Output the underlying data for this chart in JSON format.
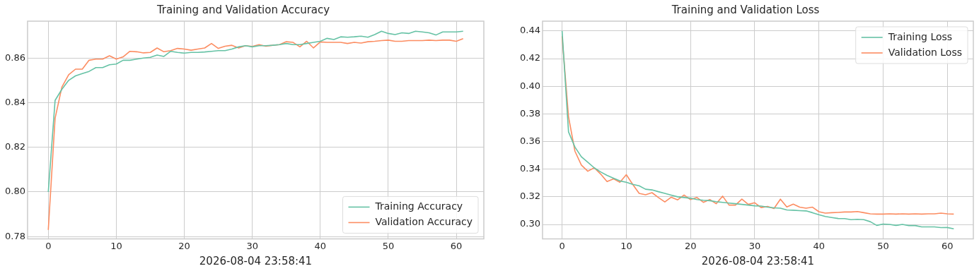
{
  "chart_data": [
    {
      "type": "line",
      "title": "Training and Validation Accuracy",
      "xlabel": "2026-08-04 23:58:41",
      "x": [
        0,
        1,
        2,
        3,
        4,
        5,
        6,
        7,
        8,
        9,
        10,
        11,
        12,
        13,
        14,
        15,
        16,
        17,
        18,
        19,
        20,
        21,
        22,
        23,
        24,
        25,
        26,
        27,
        28,
        29,
        30,
        31,
        32,
        33,
        34,
        35,
        36,
        37,
        38,
        39,
        40,
        41,
        42,
        43,
        44,
        45,
        46,
        47,
        48,
        49,
        50,
        51,
        52,
        53,
        54,
        55,
        56,
        57,
        58,
        59,
        60,
        61
      ],
      "series": [
        {
          "name": "Training Accuracy",
          "color": "#66c2a5",
          "values": [
            0.8,
            0.841,
            0.846,
            0.85,
            0.852,
            0.853,
            0.854,
            0.8557,
            0.8557,
            0.857,
            0.8573,
            0.859,
            0.859,
            0.8595,
            0.86,
            0.8603,
            0.8613,
            0.8607,
            0.863,
            0.8625,
            0.8622,
            0.8625,
            0.8625,
            0.8627,
            0.863,
            0.8633,
            0.8633,
            0.864,
            0.865,
            0.8655,
            0.865,
            0.8655,
            0.8655,
            0.8657,
            0.866,
            0.8665,
            0.866,
            0.866,
            0.8665,
            0.867,
            0.8675,
            0.8688,
            0.8683,
            0.8695,
            0.8693,
            0.8695,
            0.8698,
            0.8693,
            0.8705,
            0.872,
            0.871,
            0.8705,
            0.8713,
            0.871,
            0.872,
            0.8717,
            0.8713,
            0.8703,
            0.8717,
            0.8717,
            0.8717,
            0.872
          ]
        },
        {
          "name": "Validation Accuracy",
          "color": "#fc8d62",
          "values": [
            0.783,
            0.833,
            0.847,
            0.8525,
            0.855,
            0.855,
            0.859,
            0.8595,
            0.8595,
            0.861,
            0.8595,
            0.8605,
            0.863,
            0.8628,
            0.8623,
            0.8625,
            0.8645,
            0.8628,
            0.8633,
            0.8643,
            0.864,
            0.8635,
            0.864,
            0.8645,
            0.8665,
            0.8643,
            0.8653,
            0.8657,
            0.8645,
            0.8655,
            0.8652,
            0.866,
            0.8653,
            0.8657,
            0.866,
            0.8673,
            0.867,
            0.865,
            0.8675,
            0.8645,
            0.8672,
            0.867,
            0.867,
            0.867,
            0.8665,
            0.867,
            0.8667,
            0.8673,
            0.8675,
            0.8678,
            0.868,
            0.8675,
            0.8675,
            0.8678,
            0.8678,
            0.8678,
            0.868,
            0.8678,
            0.868,
            0.868,
            0.8675,
            0.8687
          ]
        }
      ],
      "xlim": [
        -3.05,
        64.05
      ],
      "xticks": [
        0,
        10,
        20,
        30,
        40,
        50,
        60
      ],
      "ylim": [
        0.779,
        0.8765
      ],
      "yticks": [
        {
          "value": 0.78,
          "label": "0.78"
        },
        {
          "value": 0.8,
          "label": "0.80"
        },
        {
          "value": 0.82,
          "label": "0.82"
        },
        {
          "value": 0.84,
          "label": "0.84"
        },
        {
          "value": 0.86,
          "label": "0.86"
        }
      ],
      "grid": true,
      "legend": "bottom right",
      "marker": "none",
      "line_style": "solid"
    },
    {
      "type": "line",
      "title": "Training and Validation Loss",
      "xlabel": "2026-08-04 23:58:41",
      "x": [
        0,
        1,
        2,
        3,
        4,
        5,
        6,
        7,
        8,
        9,
        10,
        11,
        12,
        13,
        14,
        15,
        16,
        17,
        18,
        19,
        20,
        21,
        22,
        23,
        24,
        25,
        26,
        27,
        28,
        29,
        30,
        31,
        32,
        33,
        34,
        35,
        36,
        37,
        38,
        39,
        40,
        41,
        42,
        43,
        44,
        45,
        46,
        47,
        48,
        49,
        50,
        51,
        52,
        53,
        54,
        55,
        56,
        57,
        58,
        59,
        60,
        61
      ],
      "series": [
        {
          "name": "Training Loss",
          "color": "#66c2a5",
          "values": [
            0.44,
            0.367,
            0.356,
            0.349,
            0.345,
            0.341,
            0.338,
            0.3355,
            0.3335,
            0.3315,
            0.3305,
            0.329,
            0.328,
            0.3255,
            0.325,
            0.3237,
            0.3225,
            0.3212,
            0.32,
            0.3195,
            0.319,
            0.318,
            0.3175,
            0.3172,
            0.3165,
            0.316,
            0.3155,
            0.315,
            0.3145,
            0.314,
            0.3135,
            0.3133,
            0.3125,
            0.312,
            0.3118,
            0.3105,
            0.3103,
            0.31,
            0.3098,
            0.3085,
            0.307,
            0.3058,
            0.305,
            0.3043,
            0.3042,
            0.3035,
            0.3037,
            0.3035,
            0.302,
            0.2993,
            0.3003,
            0.3,
            0.2993,
            0.3,
            0.2992,
            0.2992,
            0.2982,
            0.2982,
            0.2982,
            0.2977,
            0.2978,
            0.2968
          ]
        },
        {
          "name": "Validation Loss",
          "color": "#fc8d62",
          "values": [
            0.436,
            0.378,
            0.353,
            0.343,
            0.3385,
            0.341,
            0.3365,
            0.331,
            0.333,
            0.3305,
            0.336,
            0.329,
            0.3225,
            0.3215,
            0.323,
            0.3195,
            0.3163,
            0.3197,
            0.3178,
            0.3213,
            0.318,
            0.3195,
            0.316,
            0.318,
            0.315,
            0.3205,
            0.314,
            0.314,
            0.3183,
            0.3145,
            0.3157,
            0.3122,
            0.313,
            0.3115,
            0.3183,
            0.3127,
            0.3147,
            0.3125,
            0.3118,
            0.3125,
            0.3092,
            0.3082,
            0.3085,
            0.3087,
            0.309,
            0.309,
            0.3093,
            0.3085,
            0.3077,
            0.3075,
            0.3075,
            0.3077,
            0.3075,
            0.3077,
            0.3075,
            0.3077,
            0.3075,
            0.3077,
            0.3077,
            0.3082,
            0.3077,
            0.3075
          ]
        }
      ],
      "xlim": [
        -3.05,
        64.05
      ],
      "xticks": [
        0,
        10,
        20,
        30,
        40,
        50,
        60
      ],
      "ylim": [
        0.2896,
        0.4471
      ],
      "yticks": [
        {
          "value": 0.3,
          "label": "0.30"
        },
        {
          "value": 0.32,
          "label": "0.32"
        },
        {
          "value": 0.34,
          "label": "0.34"
        },
        {
          "value": 0.36,
          "label": "0.36"
        },
        {
          "value": 0.38,
          "label": "0.38"
        },
        {
          "value": 0.4,
          "label": "0.40"
        },
        {
          "value": 0.42,
          "label": "0.42"
        },
        {
          "value": 0.44,
          "label": "0.44"
        }
      ],
      "grid": true,
      "legend": "top right",
      "marker": "none",
      "line_style": "solid"
    }
  ]
}
